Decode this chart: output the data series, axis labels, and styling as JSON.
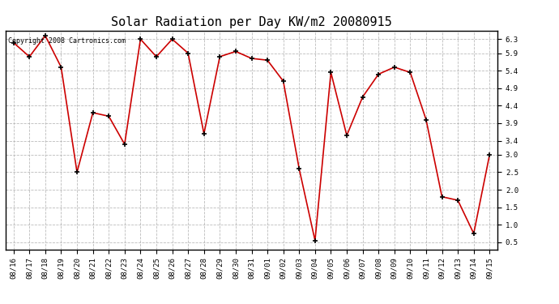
{
  "title": "Solar Radiation per Day KW/m2 20080915",
  "copyright": "Copyright 2008 Cartronics.com",
  "labels": [
    "08/16",
    "08/17",
    "08/18",
    "08/19",
    "08/20",
    "08/21",
    "08/22",
    "08/23",
    "08/24",
    "08/25",
    "08/26",
    "08/27",
    "08/28",
    "08/29",
    "08/30",
    "08/31",
    "09/01",
    "09/02",
    "09/03",
    "09/04",
    "09/05",
    "09/06",
    "09/07",
    "09/08",
    "09/09",
    "09/10",
    "09/11",
    "09/12",
    "09/13",
    "09/14",
    "09/15"
  ],
  "values": [
    6.2,
    5.8,
    6.4,
    5.5,
    2.5,
    4.2,
    4.1,
    3.3,
    6.3,
    5.8,
    6.3,
    5.9,
    3.6,
    5.8,
    5.95,
    5.75,
    5.7,
    5.1,
    2.6,
    0.55,
    5.35,
    3.55,
    4.65,
    5.3,
    5.5,
    5.35,
    4.0,
    1.8,
    1.7,
    0.75,
    3.0
  ],
  "line_color": "#cc0000",
  "marker_color": "#000000",
  "bg_color": "#ffffff",
  "grid_color": "#aaaaaa",
  "yticks": [
    0.5,
    1.0,
    1.5,
    2.0,
    2.5,
    3.0,
    3.4,
    3.9,
    4.4,
    4.9,
    5.4,
    5.9,
    6.3
  ],
  "ylim": [
    0.3,
    6.55
  ],
  "title_fontsize": 11,
  "tick_fontsize": 6.5,
  "copyright_fontsize": 6
}
